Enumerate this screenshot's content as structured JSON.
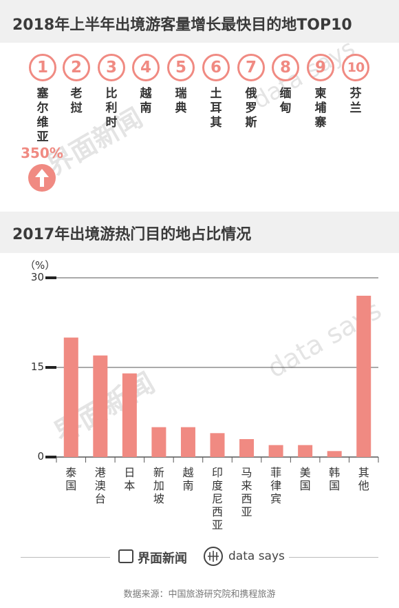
{
  "section1": {
    "title": "2018年上半年出境游客量增长最快目的地TOP10",
    "top10": [
      {
        "rank": "1",
        "name": "塞尔维亚"
      },
      {
        "rank": "2",
        "name": "老挝"
      },
      {
        "rank": "3",
        "name": "比利时"
      },
      {
        "rank": "4",
        "name": "越南"
      },
      {
        "rank": "5",
        "name": "瑞典"
      },
      {
        "rank": "6",
        "name": "土耳其"
      },
      {
        "rank": "7",
        "name": "俄罗斯"
      },
      {
        "rank": "8",
        "name": "缅甸"
      },
      {
        "rank": "9",
        "name": "柬埔寨"
      },
      {
        "rank": "10",
        "name": "芬兰"
      }
    ],
    "growth_label": "350%",
    "growth_icon": "arrow-up-icon"
  },
  "section2": {
    "title": "2017年出境游热门目的地占比情况"
  },
  "chart_data": {
    "type": "bar",
    "categories": [
      "泰国",
      "港澳台",
      "日本",
      "新加坡",
      "越南",
      "印度尼西亚",
      "马来西亚",
      "菲律宾",
      "美国",
      "韩国",
      "其他"
    ],
    "values": [
      20,
      17,
      14,
      5,
      5,
      4,
      3,
      2,
      2,
      1,
      27
    ],
    "yticks": [
      0,
      15,
      30
    ],
    "ylim": [
      0,
      30
    ],
    "ylabel": "（%）",
    "grid": true,
    "bar_color": "#f08a82"
  },
  "watermarks": {
    "jiemian": "界面新闻",
    "datasays": "data says"
  },
  "footer": {
    "brand1": "界面新闻",
    "brand2": "data says",
    "source": "数据来源：中国旅游研究院和携程旅游"
  },
  "colors": {
    "accent": "#f08a82",
    "band": "#f0f0f0",
    "text": "#333333"
  }
}
